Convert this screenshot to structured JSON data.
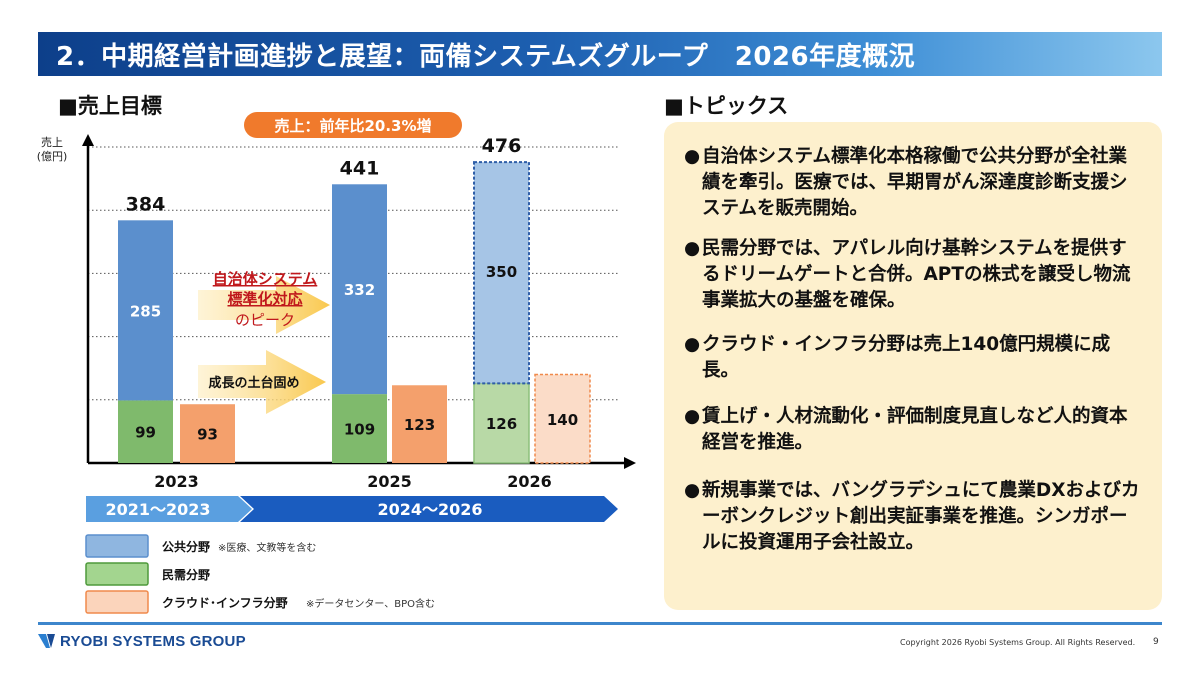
{
  "title": "2．中期経営計画進捗と展望：両備システムズグループ　2026年度概況",
  "left_heading": "■売上目標",
  "right_heading": "■トピックス",
  "chart_data": {
    "type": "bar",
    "title": "",
    "ylabel_lines": [
      "売上",
      "(億円)"
    ],
    "ylim": [
      0,
      500
    ],
    "grid": "dotted horizontal",
    "categories": [
      "2023",
      "2025",
      "2026"
    ],
    "series": [
      {
        "name": "公共分野",
        "note": "※医療、文教等を含む",
        "color": "#5b8fcd",
        "values": [
          285,
          332,
          350
        ],
        "estimated": [
          false,
          false,
          true
        ]
      },
      {
        "name": "民需分野",
        "color": "#7fba6c",
        "values": [
          99,
          109,
          126
        ],
        "estimated": [
          false,
          false,
          true
        ]
      },
      {
        "name": "クラウド･インフラ分野",
        "note": "※データセンター、BPO含む",
        "color": "#f4a06c",
        "values": [
          93,
          123,
          140
        ],
        "estimated": [
          false,
          false,
          true
        ]
      }
    ],
    "totals": [
      384,
      441,
      476
    ],
    "stacked_series": [
      "公共分野",
      "民需分野"
    ],
    "callout": "売上：前年比20.3%増",
    "annotations": [
      {
        "lines": [
          "自治体システム",
          "標準化対応",
          "のピーク"
        ]
      },
      {
        "lines": [
          "成長の土台固め"
        ]
      }
    ],
    "periods": [
      {
        "label": "2021～2023",
        "color": "#5a9fe0"
      },
      {
        "label": "2024～2026",
        "color": "#1a5cbf"
      }
    ],
    "legend_placement": "bottom"
  },
  "topics": [
    "自治体システム標準化本格稼働で公共分野が全社業績を牽引。医療では、早期胃がん深達度診断支援システムを販売開始。",
    "民需分野では、アパレル向け基幹システムを提供するドリームゲートと合併。APTの株式を譲受し物流事業拡大の基盤を確保。",
    "クラウド・インフラ分野は売上140億円規模に成長。",
    "賃上げ・人材流動化・評価制度見直しなど人的資本経営を推進。",
    "新規事業では、バングラデシュにて農業DXおよびカーボンクレジット創出実証事業を推進。シンガポールに投資運用子会社設立。"
  ],
  "footer": {
    "logo_text": "RYOBI SYSTEMS GROUP",
    "copyright": "Copyright 2026 Ryobi Systems Group. All Rights Reserved.",
    "page": "9"
  }
}
